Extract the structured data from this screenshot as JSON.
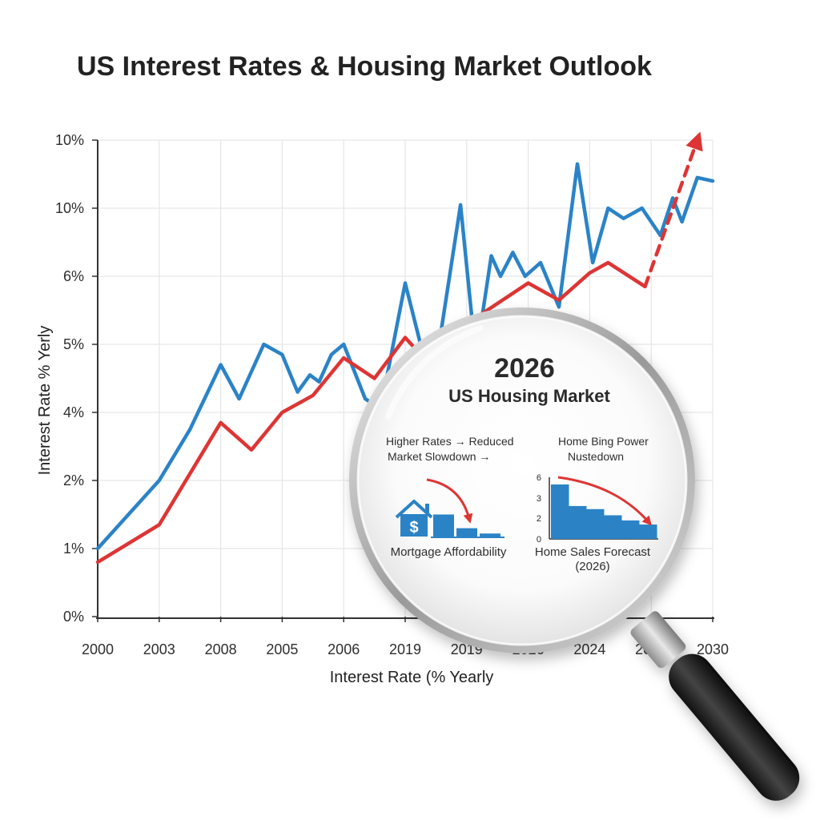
{
  "title": "US Interest Rates & Housing Market Outlook",
  "colors": {
    "blue": "#2b83c6",
    "red": "#dd3535",
    "grid": "#e6e6e6",
    "axis": "#333333"
  },
  "chart_data": [
    {
      "type": "line",
      "title": "US Interest Rates & Housing Market Outlook",
      "xlabel": "Interest Rate (% Yearly",
      "ylabel": "Interest Rate % Yerly",
      "x_tick_labels": [
        "2000",
        "2003",
        "2008",
        "2005",
        "2006",
        "2019",
        "2019",
        "2026",
        "2024",
        "2024",
        "2030"
      ],
      "y_tick_labels": [
        "0%",
        "1%",
        "2%",
        "4%",
        "5%",
        "6%",
        "10%",
        "10%"
      ],
      "y_tick_positions": [
        0,
        1,
        2,
        3,
        4,
        5,
        6,
        7
      ],
      "note": "x positions are category-axis positions (0 = first tick label, 10 = last); y values are on the printed tick-label scale positions",
      "grid": true,
      "series": [
        {
          "color": "#2b83c6",
          "points": [
            [
              0,
              1.0
            ],
            [
              1,
              2.0
            ],
            [
              1.5,
              2.75
            ],
            [
              2,
              3.7
            ],
            [
              2.3,
              3.2
            ],
            [
              2.7,
              4.0
            ],
            [
              3,
              3.85
            ],
            [
              3.25,
              3.3
            ],
            [
              3.45,
              3.55
            ],
            [
              3.6,
              3.45
            ],
            [
              3.8,
              3.85
            ],
            [
              4,
              4.0
            ],
            [
              4.35,
              3.2
            ],
            [
              4.6,
              3.05
            ],
            [
              5,
              4.9
            ],
            [
              5.25,
              4.0
            ],
            [
              5.5,
              3.7
            ],
            [
              5.9,
              6.05
            ],
            [
              6.15,
              3.8
            ],
            [
              6.4,
              5.3
            ],
            [
              6.55,
              5.0
            ],
            [
              6.75,
              5.35
            ],
            [
              6.95,
              5.0
            ],
            [
              7.2,
              5.2
            ],
            [
              7.5,
              4.55
            ],
            [
              7.8,
              6.65
            ],
            [
              8.05,
              5.2
            ],
            [
              8.3,
              6.0
            ],
            [
              8.55,
              5.85
            ],
            [
              8.85,
              6.0
            ],
            [
              9.15,
              5.6
            ],
            [
              9.35,
              6.15
            ],
            [
              9.5,
              5.8
            ],
            [
              9.75,
              6.45
            ],
            [
              10,
              6.4
            ]
          ]
        },
        {
          "color": "#dd3535",
          "points": [
            [
              0,
              0.8
            ],
            [
              1,
              1.35
            ],
            [
              2,
              2.85
            ],
            [
              2.5,
              2.45
            ],
            [
              3,
              3.0
            ],
            [
              3.5,
              3.25
            ],
            [
              4,
              3.8
            ],
            [
              4.5,
              3.5
            ],
            [
              5,
              4.1
            ],
            [
              5.5,
              3.6
            ],
            [
              6,
              4.3
            ],
            [
              6.5,
              4.6
            ],
            [
              7,
              4.9
            ],
            [
              7.5,
              4.65
            ],
            [
              8,
              5.05
            ],
            [
              8.3,
              5.2
            ],
            [
              8.9,
              4.85
            ]
          ]
        },
        {
          "color": "#dd3535",
          "dashed": true,
          "arrow": true,
          "points": [
            [
              8.9,
              4.85
            ],
            [
              9.75,
              7.0
            ]
          ]
        }
      ]
    },
    {
      "type": "bar",
      "title": "Mortgage Affordability",
      "categories": [
        "",
        "",
        ""
      ],
      "values": [
        3.0,
        1.2,
        0.5
      ],
      "color": "#2b83c6"
    },
    {
      "type": "bar",
      "title": "Home Sales Forecast",
      "subtitle": "(2026)",
      "y_tick_labels": [
        "6",
        "3",
        "2",
        "0"
      ],
      "values": [
        5.3,
        3.2,
        2.9,
        2.3,
        1.8,
        1.4
      ],
      "color": "#2b83c6"
    }
  ],
  "magnifier": {
    "year": "2026",
    "heading": "US Housing Market",
    "left_text_1": "Higher Rates → Reduced",
    "left_text_2": "Market Slowdown →",
    "right_text_1": "Home Bing Power",
    "right_text_2": "Nustedown",
    "icon_house": "house-dollar-icon"
  }
}
